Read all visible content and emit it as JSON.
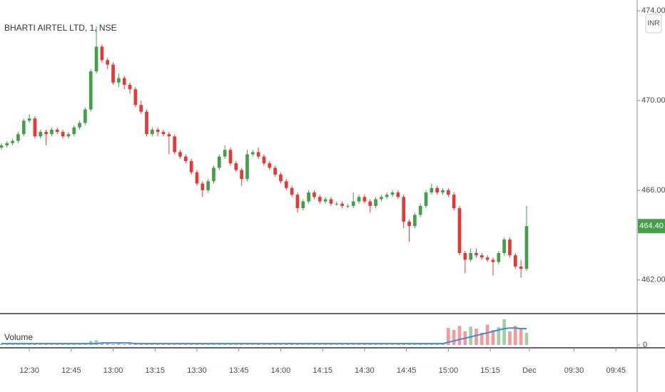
{
  "chart_data": {
    "type": "candlestick",
    "title": "BHARTI AIRTEL LTD, 1, NSE",
    "currency": "INR",
    "up_color": "#43a047",
    "down_color": "#e53935",
    "ohlc": [
      [
        467.9,
        468.1,
        467.8,
        468.0
      ],
      [
        468.0,
        468.2,
        467.9,
        468.1
      ],
      [
        468.1,
        468.3,
        468.0,
        468.2
      ],
      [
        468.2,
        468.6,
        468.1,
        468.5
      ],
      [
        468.5,
        469.2,
        468.4,
        469.1
      ],
      [
        469.1,
        469.4,
        469.0,
        469.2
      ],
      [
        469.2,
        469.3,
        468.3,
        468.4
      ],
      [
        468.4,
        468.7,
        468.3,
        468.6
      ],
      [
        468.6,
        468.7,
        468.0,
        468.5
      ],
      [
        468.5,
        468.8,
        468.4,
        468.7
      ],
      [
        468.7,
        468.8,
        468.5,
        468.6
      ],
      [
        468.6,
        468.7,
        468.3,
        468.4
      ],
      [
        468.4,
        468.6,
        468.3,
        468.5
      ],
      [
        468.5,
        468.9,
        468.4,
        468.8
      ],
      [
        468.8,
        469.1,
        468.7,
        469.0
      ],
      [
        469.0,
        469.7,
        468.9,
        469.6
      ],
      [
        469.6,
        471.4,
        469.5,
        471.3
      ],
      [
        471.3,
        473.3,
        471.2,
        472.4
      ],
      [
        472.4,
        472.5,
        471.7,
        471.8
      ],
      [
        471.8,
        471.9,
        471.4,
        471.6
      ],
      [
        471.6,
        471.7,
        470.7,
        470.8
      ],
      [
        470.8,
        471.2,
        470.6,
        471.0
      ],
      [
        471.0,
        471.1,
        470.5,
        470.7
      ],
      [
        470.7,
        470.8,
        470.3,
        470.5
      ],
      [
        470.5,
        470.6,
        469.7,
        469.8
      ],
      [
        469.8,
        470.0,
        469.4,
        469.5
      ],
      [
        469.5,
        469.6,
        468.4,
        468.5
      ],
      [
        468.5,
        468.8,
        468.4,
        468.7
      ],
      [
        468.7,
        468.8,
        468.4,
        468.6
      ],
      [
        468.6,
        468.7,
        468.4,
        468.5
      ],
      [
        468.5,
        468.6,
        467.6,
        468.4
      ],
      [
        468.4,
        468.5,
        467.6,
        467.7
      ],
      [
        467.7,
        467.8,
        467.4,
        467.5
      ],
      [
        467.5,
        467.6,
        467.2,
        467.3
      ],
      [
        467.3,
        467.4,
        466.7,
        466.8
      ],
      [
        466.8,
        466.9,
        466.2,
        466.3
      ],
      [
        466.3,
        466.4,
        465.7,
        466.0
      ],
      [
        466.0,
        466.5,
        465.9,
        466.4
      ],
      [
        466.4,
        467.1,
        466.3,
        467.0
      ],
      [
        467.0,
        467.6,
        466.9,
        467.5
      ],
      [
        467.5,
        468.0,
        467.4,
        467.8
      ],
      [
        467.8,
        467.9,
        467.1,
        467.2
      ],
      [
        467.2,
        467.3,
        466.8,
        466.9
      ],
      [
        466.9,
        467.0,
        466.2,
        466.5
      ],
      [
        466.5,
        467.8,
        466.4,
        467.6
      ],
      [
        467.6,
        467.8,
        467.5,
        467.7
      ],
      [
        467.7,
        467.9,
        467.4,
        467.5
      ],
      [
        467.5,
        467.6,
        467.1,
        467.2
      ],
      [
        467.2,
        467.3,
        466.9,
        467.0
      ],
      [
        467.0,
        467.1,
        466.6,
        466.7
      ],
      [
        466.7,
        466.8,
        466.3,
        466.4
      ],
      [
        466.4,
        466.5,
        466.0,
        466.1
      ],
      [
        466.1,
        466.2,
        465.7,
        465.8
      ],
      [
        465.8,
        465.9,
        465.0,
        465.2
      ],
      [
        465.2,
        465.6,
        465.1,
        465.5
      ],
      [
        465.5,
        466.0,
        465.4,
        465.9
      ],
      [
        465.9,
        466.0,
        465.6,
        465.7
      ],
      [
        465.7,
        465.8,
        465.4,
        465.5
      ],
      [
        465.5,
        465.7,
        465.4,
        465.6
      ],
      [
        465.6,
        465.7,
        465.3,
        465.4
      ],
      [
        465.4,
        465.5,
        465.3,
        465.4
      ],
      [
        465.4,
        465.5,
        465.2,
        465.3
      ],
      [
        465.3,
        465.4,
        465.2,
        465.3
      ],
      [
        465.3,
        465.9,
        465.2,
        465.5
      ],
      [
        465.5,
        465.8,
        465.4,
        465.7
      ],
      [
        465.7,
        465.8,
        465.4,
        465.5
      ],
      [
        465.5,
        465.6,
        465.0,
        465.3
      ],
      [
        465.3,
        465.7,
        465.2,
        465.6
      ],
      [
        465.6,
        465.8,
        465.5,
        465.7
      ],
      [
        465.7,
        465.9,
        465.6,
        465.8
      ],
      [
        465.8,
        466.0,
        465.7,
        465.9
      ],
      [
        465.9,
        466.0,
        465.6,
        465.7
      ],
      [
        465.7,
        465.8,
        464.3,
        464.6
      ],
      [
        464.6,
        464.7,
        463.7,
        464.4
      ],
      [
        464.4,
        465.0,
        464.3,
        464.9
      ],
      [
        464.9,
        465.4,
        464.8,
        465.3
      ],
      [
        465.3,
        466.0,
        465.2,
        465.9
      ],
      [
        465.9,
        466.3,
        465.8,
        466.1
      ],
      [
        466.1,
        466.2,
        465.8,
        465.9
      ],
      [
        465.9,
        466.1,
        465.8,
        466.0
      ],
      [
        466.0,
        466.1,
        465.7,
        465.8
      ],
      [
        465.8,
        465.9,
        465.1,
        465.2
      ],
      [
        465.2,
        465.3,
        463.1,
        463.2
      ],
      [
        463.2,
        463.3,
        462.3,
        462.9
      ],
      [
        462.9,
        463.4,
        462.8,
        463.2
      ],
      [
        463.2,
        463.4,
        463.0,
        463.1
      ],
      [
        463.1,
        463.2,
        462.9,
        463.0
      ],
      [
        463.0,
        463.1,
        462.8,
        462.9
      ],
      [
        462.9,
        463.0,
        462.2,
        462.8
      ],
      [
        462.8,
        463.3,
        462.7,
        463.2
      ],
      [
        463.2,
        463.9,
        463.1,
        463.8
      ],
      [
        463.8,
        463.9,
        463.0,
        463.1
      ],
      [
        463.1,
        463.2,
        462.5,
        462.6
      ],
      [
        462.6,
        462.9,
        462.1,
        462.5
      ],
      [
        462.5,
        465.3,
        462.4,
        464.4
      ]
    ],
    "ylim": [
      460.5,
      474.48
    ],
    "yticks": [
      {
        "value": 474,
        "label": "474.00"
      },
      {
        "value": 470,
        "label": "470.00"
      },
      {
        "value": 466,
        "label": "466.00"
      },
      {
        "value": 462,
        "label": "462.00"
      }
    ],
    "last_price": {
      "value": 464.4,
      "label": "464.40"
    },
    "volume": {
      "name": "Volume",
      "ma_color": "#3a8fd9",
      "values": [
        2,
        1,
        2,
        1,
        2,
        3,
        2,
        1,
        2,
        1,
        2,
        1,
        2,
        2,
        2,
        3,
        6,
        7,
        2,
        2,
        1,
        2,
        1,
        2,
        2,
        1,
        2,
        1,
        2,
        1,
        2,
        1,
        1,
        2,
        1,
        2,
        2,
        1,
        2,
        1,
        2,
        1,
        1,
        2,
        1,
        1,
        2,
        1,
        2,
        1,
        1,
        2,
        1,
        2,
        1,
        1,
        2,
        1,
        1,
        2,
        1,
        1,
        2,
        1,
        1,
        2,
        1,
        1,
        2,
        1,
        1,
        2,
        3,
        2,
        1,
        1,
        2,
        2,
        1,
        2,
        25,
        22,
        28,
        20,
        27,
        24,
        18,
        30,
        22,
        26,
        38,
        20,
        28,
        25,
        18
      ],
      "ma": [
        2,
        2,
        2,
        2,
        2,
        2,
        2,
        2,
        2,
        2,
        2,
        2,
        2,
        2,
        2,
        2,
        2,
        2,
        3,
        3,
        3,
        3,
        3,
        3,
        2,
        2,
        2,
        2,
        2,
        2,
        2,
        2,
        2,
        2,
        2,
        2,
        2,
        2,
        2,
        2,
        2,
        2,
        2,
        2,
        2,
        2,
        2,
        2,
        2,
        2,
        2,
        2,
        2,
        2,
        2,
        2,
        2,
        2,
        2,
        2,
        2,
        2,
        2,
        2,
        2,
        2,
        2,
        2,
        2,
        2,
        2,
        2,
        2,
        2,
        2,
        2,
        2,
        2,
        2,
        2,
        4,
        6,
        8,
        10,
        12,
        14,
        16,
        18,
        20,
        22,
        24,
        25,
        25,
        24,
        24
      ],
      "ylim": [
        0,
        42
      ],
      "yticks": [
        0
      ]
    },
    "xlim": [
      -0.25,
      113.8
    ],
    "xticks": [
      {
        "value": 5,
        "label": "12:30"
      },
      {
        "value": 12.5,
        "label": "12:45"
      },
      {
        "value": 20,
        "label": "13:00"
      },
      {
        "value": 27.5,
        "label": "13:15"
      },
      {
        "value": 35,
        "label": "13:30"
      },
      {
        "value": 42.5,
        "label": "13:45"
      },
      {
        "value": 50,
        "label": "14:00"
      },
      {
        "value": 57.5,
        "label": "14:15"
      },
      {
        "value": 65,
        "label": "14:30"
      },
      {
        "value": 72.5,
        "label": "14:45"
      },
      {
        "value": 80,
        "label": "15:00"
      },
      {
        "value": 87.5,
        "label": "15:15"
      },
      {
        "value": 94.5,
        "label": "Dec"
      },
      {
        "value": 102.5,
        "label": "09:30"
      },
      {
        "value": 110,
        "label": "09:45"
      }
    ]
  }
}
